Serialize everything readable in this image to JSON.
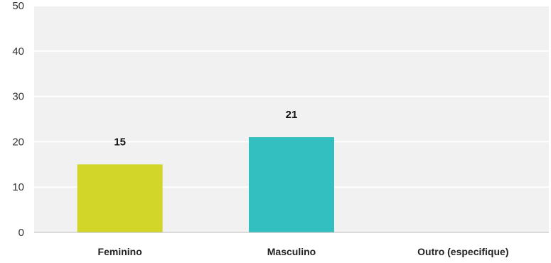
{
  "chart_data": {
    "type": "bar",
    "categories": [
      "Feminino",
      "Masculino",
      "Outro (especifique)"
    ],
    "values": [
      15,
      21,
      0
    ],
    "data_labels": [
      "15",
      "21",
      ""
    ],
    "title": "",
    "xlabel": "",
    "ylabel": "",
    "ylim": [
      0,
      50
    ],
    "yticks": [
      0,
      10,
      20,
      30,
      40,
      50
    ],
    "ytick_labels": [
      "0",
      "10",
      "20",
      "30",
      "40",
      "50"
    ],
    "grid": true,
    "legend": "none",
    "colors": {
      "bars": [
        "#d1d628",
        "#33bec0",
        "#cccccc"
      ],
      "plot_background": "#f1f1f1",
      "grid": "#ffffff",
      "axis": "#bbbbbb"
    }
  }
}
